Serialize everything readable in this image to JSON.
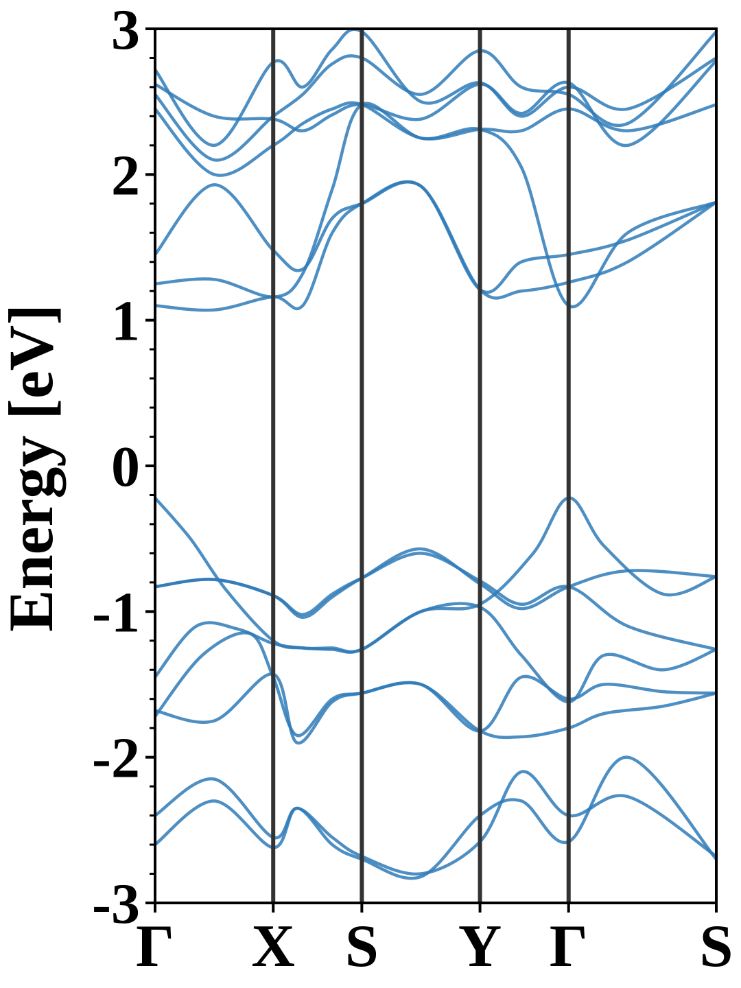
{
  "chart_data": {
    "type": "line",
    "title": "",
    "xlabel": "",
    "ylabel": "Energy [eV]",
    "ylim": [
      -3,
      3
    ],
    "yticks": [
      -3,
      -2,
      -1,
      0,
      1,
      2,
      3
    ],
    "ytick_labels": [
      "-3",
      "-2",
      "-1",
      "0",
      "1",
      "2",
      "3"
    ],
    "x_ticks": [
      {
        "label": "Γ",
        "x": 0
      },
      {
        "label": "X",
        "x": 1
      },
      {
        "label": "S",
        "x": 1.75
      },
      {
        "label": "Y",
        "x": 2.75
      },
      {
        "label": "Γ",
        "x": 3.5
      },
      {
        "label": "S",
        "x": 4.75
      }
    ],
    "xlim": [
      0,
      4.75
    ],
    "grid": false,
    "line_color": "#2f7bb8",
    "divider_color": "#333333",
    "series": [
      {
        "x": [
          0,
          0.5,
          1,
          1.25,
          1.5,
          1.75,
          2.25,
          2.75,
          3.1,
          3.5,
          4,
          4.75
        ],
        "y": [
          -0.83,
          -0.78,
          -0.89,
          -1.02,
          -0.88,
          -0.77,
          -0.6,
          -0.79,
          -0.95,
          -0.83,
          -1.1,
          -1.26
        ]
      },
      {
        "x": [
          0,
          0.5,
          1,
          1.25,
          1.5,
          1.75,
          2.25,
          2.75,
          3.1,
          3.5,
          4,
          4.75
        ],
        "y": [
          -0.83,
          -0.78,
          -0.89,
          -1.04,
          -0.9,
          -0.77,
          -0.57,
          -0.81,
          -0.98,
          -0.83,
          -0.72,
          -0.76
        ]
      },
      {
        "x": [
          0,
          0.3,
          0.6,
          1,
          1.25,
          1.5,
          1.75,
          2.25,
          2.75,
          3.2,
          3.5,
          3.8,
          4.3,
          4.75
        ],
        "y": [
          -0.22,
          -0.5,
          -0.85,
          -1.2,
          -1.25,
          -1.25,
          -1.26,
          -1.0,
          -0.95,
          -0.6,
          -0.22,
          -0.55,
          -0.88,
          -0.76
        ]
      },
      {
        "x": [
          0,
          0.35,
          0.7,
          1,
          1.25,
          1.5,
          1.75,
          2.25,
          2.75,
          3.1,
          3.5,
          3.8,
          4.3,
          4.75
        ],
        "y": [
          -1.45,
          -1.1,
          -1.12,
          -1.22,
          -1.25,
          -1.26,
          -1.26,
          -1.0,
          -0.97,
          -1.3,
          -1.62,
          -1.3,
          -1.4,
          -1.26
        ]
      },
      {
        "x": [
          0,
          0.4,
          0.8,
          1,
          1.2,
          1.5,
          1.75,
          2.25,
          2.75,
          3.1,
          3.5,
          3.8,
          4.3,
          4.75
        ],
        "y": [
          -1.72,
          -1.3,
          -1.15,
          -1.45,
          -1.85,
          -1.6,
          -1.56,
          -1.5,
          -1.82,
          -1.45,
          -1.6,
          -1.5,
          -1.55,
          -1.56
        ]
      },
      {
        "x": [
          0,
          0.5,
          1,
          1.2,
          1.5,
          1.75,
          2.25,
          2.75,
          3.1,
          3.5,
          3.8,
          4.3,
          4.75
        ],
        "y": [
          -1.68,
          -1.75,
          -1.43,
          -1.9,
          -1.62,
          -1.56,
          -1.5,
          -1.82,
          -1.86,
          -1.8,
          -1.7,
          -1.65,
          -1.56
        ]
      },
      {
        "x": [
          0,
          0.5,
          1,
          1.2,
          1.5,
          1.75,
          2.25,
          2.75,
          3.1,
          3.5,
          4,
          4.75
        ],
        "y": [
          -2.4,
          -2.15,
          -2.55,
          -2.35,
          -2.55,
          -2.68,
          -2.8,
          -2.58,
          -2.1,
          -2.4,
          -2.27,
          -2.68
        ]
      },
      {
        "x": [
          0,
          0.5,
          1,
          1.2,
          1.5,
          1.75,
          2.25,
          2.75,
          3.1,
          3.5,
          4,
          4.75
        ],
        "y": [
          -2.6,
          -2.3,
          -2.62,
          -2.35,
          -2.6,
          -2.7,
          -2.82,
          -2.4,
          -2.3,
          -2.58,
          -2.0,
          -2.7
        ]
      },
      {
        "x": [
          0,
          0.5,
          1,
          1.25,
          1.5,
          1.75,
          2.25,
          2.75,
          3.1,
          3.5,
          4,
          4.75
        ],
        "y": [
          1.25,
          1.28,
          1.16,
          1.32,
          1.9,
          2.48,
          2.25,
          2.31,
          2.05,
          1.1,
          1.6,
          1.81
        ]
      },
      {
        "x": [
          0,
          0.5,
          1,
          1.25,
          1.5,
          1.75,
          2.25,
          2.75,
          3.1,
          3.5,
          4,
          4.75
        ],
        "y": [
          1.1,
          1.07,
          1.16,
          1.1,
          1.6,
          1.8,
          1.92,
          1.21,
          1.2,
          1.26,
          1.4,
          1.81
        ]
      },
      {
        "x": [
          0,
          0.5,
          1,
          1.25,
          1.5,
          1.75,
          2.25,
          2.75,
          3.1,
          3.5,
          4,
          4.75
        ],
        "y": [
          1.45,
          1.93,
          1.48,
          1.35,
          1.7,
          1.8,
          1.92,
          1.21,
          1.4,
          1.45,
          1.55,
          1.81
        ]
      },
      {
        "x": [
          0,
          0.5,
          1,
          1.25,
          1.5,
          1.75,
          2.25,
          2.75,
          3.1,
          3.5,
          4,
          4.75
        ],
        "y": [
          2.72,
          2.2,
          2.77,
          2.6,
          2.86,
          2.98,
          2.5,
          2.63,
          2.4,
          2.6,
          2.45,
          2.8
        ]
      },
      {
        "x": [
          0,
          0.5,
          1,
          1.25,
          1.5,
          1.75,
          2.25,
          2.75,
          3.1,
          3.5,
          4,
          4.75
        ],
        "y": [
          2.55,
          2.1,
          2.4,
          2.55,
          2.76,
          2.8,
          2.55,
          2.85,
          2.6,
          2.55,
          2.35,
          2.98
        ]
      },
      {
        "x": [
          0,
          0.5,
          1,
          1.25,
          1.5,
          1.75,
          2.25,
          2.75,
          3.1,
          3.5,
          4,
          4.75
        ],
        "y": [
          2.45,
          2.0,
          2.2,
          2.35,
          2.45,
          2.48,
          2.25,
          2.31,
          2.3,
          2.45,
          2.3,
          2.48
        ]
      },
      {
        "x": [
          0,
          0.5,
          1,
          1.25,
          1.5,
          1.75,
          2.25,
          2.75,
          3.1,
          3.5,
          4,
          4.75
        ],
        "y": [
          2.62,
          2.4,
          2.38,
          2.3,
          2.41,
          2.48,
          2.38,
          2.62,
          2.42,
          2.63,
          2.2,
          2.78
        ]
      }
    ]
  }
}
